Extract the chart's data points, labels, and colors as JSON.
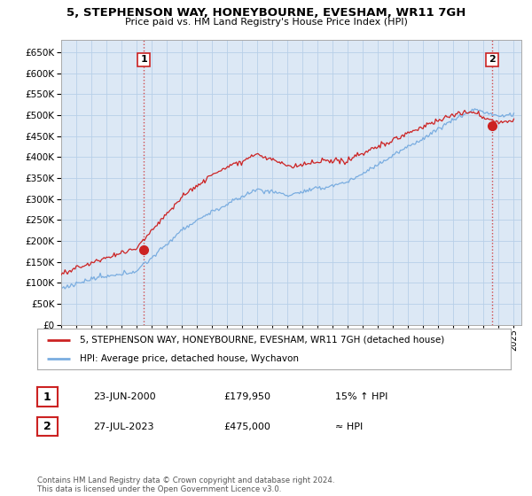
{
  "title": "5, STEPHENSON WAY, HONEYBOURNE, EVESHAM, WR11 7GH",
  "subtitle": "Price paid vs. HM Land Registry's House Price Index (HPI)",
  "ylim": [
    0,
    680000
  ],
  "yticks": [
    0,
    50000,
    100000,
    150000,
    200000,
    250000,
    300000,
    350000,
    400000,
    450000,
    500000,
    550000,
    600000,
    650000
  ],
  "xlim_start": 1995.0,
  "xlim_end": 2025.5,
  "sale1_year": 2000.47,
  "sale1_price": 179950,
  "sale1_label": "1",
  "sale2_year": 2023.56,
  "sale2_price": 475000,
  "sale2_label": "2",
  "annotation1": [
    "1",
    "23-JUN-2000",
    "£179,950",
    "15% ↑ HPI"
  ],
  "annotation2": [
    "2",
    "27-JUL-2023",
    "£475,000",
    "≈ HPI"
  ],
  "legend_line1": "5, STEPHENSON WAY, HONEYBOURNE, EVESHAM, WR11 7GH (detached house)",
  "legend_line2": "HPI: Average price, detached house, Wychavon",
  "footer": "Contains HM Land Registry data © Crown copyright and database right 2024.\nThis data is licensed under the Open Government Licence v3.0.",
  "hpi_color": "#7aade0",
  "price_color": "#cc2222",
  "bg_color": "#ffffff",
  "chart_bg": "#dce8f5",
  "grid_color": "#b8cfe8"
}
